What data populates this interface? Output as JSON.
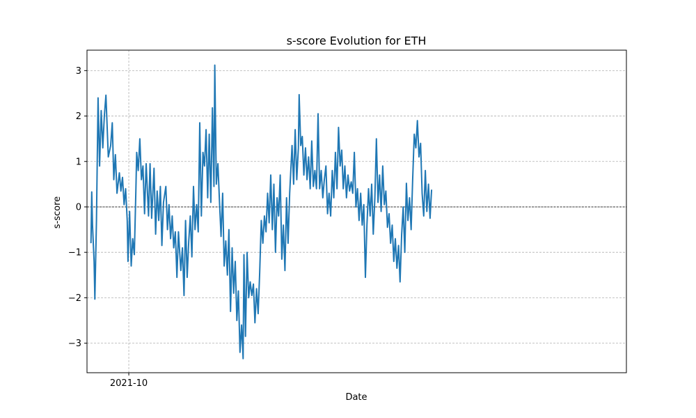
{
  "chart_data": {
    "type": "line",
    "title": "s-score Evolution for ETH",
    "xlabel": "Date",
    "ylabel": "s-score",
    "x_range": [
      "2021-08-09",
      "2023-06-24"
    ],
    "ylim": [
      -3.65,
      3.45
    ],
    "yticks": [
      -3,
      -2,
      -1,
      0,
      1,
      2,
      3
    ],
    "xticks": [
      {
        "date": "2021-10-01",
        "label": "2021-10"
      }
    ],
    "reference_line": {
      "y": 0,
      "style": "dashed",
      "color": "#000000"
    },
    "grid": true,
    "series": [
      {
        "color": "#1f77b4",
        "points": [
          {
            "x": "2021-08-14",
            "y": -0.8
          },
          {
            "x": "2021-08-15",
            "y": 0.33
          },
          {
            "x": "2021-08-16",
            "y": -0.4
          },
          {
            "x": "2021-08-18",
            "y": -1.2
          },
          {
            "x": "2021-08-19",
            "y": -2.03
          },
          {
            "x": "2021-08-21",
            "y": -0.3
          },
          {
            "x": "2021-08-23",
            "y": 2.4
          },
          {
            "x": "2021-08-25",
            "y": 0.9
          },
          {
            "x": "2021-08-27",
            "y": 2.12
          },
          {
            "x": "2021-08-29",
            "y": 1.3
          },
          {
            "x": "2021-08-31",
            "y": 2.0
          },
          {
            "x": "2021-09-02",
            "y": 2.46
          },
          {
            "x": "2021-09-05",
            "y": 1.1
          },
          {
            "x": "2021-09-08",
            "y": 1.35
          },
          {
            "x": "2021-09-10",
            "y": 1.85
          },
          {
            "x": "2021-09-12",
            "y": 0.6
          },
          {
            "x": "2021-09-14",
            "y": 1.15
          },
          {
            "x": "2021-09-16",
            "y": 0.3
          },
          {
            "x": "2021-09-19",
            "y": 0.75
          },
          {
            "x": "2021-09-21",
            "y": 0.35
          },
          {
            "x": "2021-09-23",
            "y": 0.65
          },
          {
            "x": "2021-09-25",
            "y": 0.05
          },
          {
            "x": "2021-09-27",
            "y": 0.4
          },
          {
            "x": "2021-09-29",
            "y": -0.3
          },
          {
            "x": "2021-09-30",
            "y": -1.2
          },
          {
            "x": "2021-10-02",
            "y": -0.1
          },
          {
            "x": "2021-10-04",
            "y": -1.3
          },
          {
            "x": "2021-10-06",
            "y": -0.7
          },
          {
            "x": "2021-10-08",
            "y": -1.05
          },
          {
            "x": "2021-10-10",
            "y": 0.35
          },
          {
            "x": "2021-10-11",
            "y": 1.2
          },
          {
            "x": "2021-10-13",
            "y": 0.8
          },
          {
            "x": "2021-10-15",
            "y": 1.5
          },
          {
            "x": "2021-10-17",
            "y": 0.6
          },
          {
            "x": "2021-10-19",
            "y": 0.9
          },
          {
            "x": "2021-10-21",
            "y": -0.15
          },
          {
            "x": "2021-10-23",
            "y": 0.95
          },
          {
            "x": "2021-10-26",
            "y": -0.2
          },
          {
            "x": "2021-10-28",
            "y": 0.95
          },
          {
            "x": "2021-10-30",
            "y": -0.25
          },
          {
            "x": "2021-11-02",
            "y": 0.85
          },
          {
            "x": "2021-11-04",
            "y": -0.6
          },
          {
            "x": "2021-11-06",
            "y": 0.35
          },
          {
            "x": "2021-11-08",
            "y": -0.3
          },
          {
            "x": "2021-11-10",
            "y": 0.45
          },
          {
            "x": "2021-11-12",
            "y": -0.85
          },
          {
            "x": "2021-11-14",
            "y": 0.1
          },
          {
            "x": "2021-11-17",
            "y": 0.45
          },
          {
            "x": "2021-11-19",
            "y": -0.5
          },
          {
            "x": "2021-11-21",
            "y": 0.05
          },
          {
            "x": "2021-11-23",
            "y": -0.7
          },
          {
            "x": "2021-11-25",
            "y": -0.2
          },
          {
            "x": "2021-11-27",
            "y": -0.9
          },
          {
            "x": "2021-11-29",
            "y": -0.55
          },
          {
            "x": "2021-12-01",
            "y": -1.55
          },
          {
            "x": "2021-12-03",
            "y": -0.55
          },
          {
            "x": "2021-12-06",
            "y": -1.4
          },
          {
            "x": "2021-12-08",
            "y": -0.9
          },
          {
            "x": "2021-12-10",
            "y": -1.95
          },
          {
            "x": "2021-12-12",
            "y": -0.3
          },
          {
            "x": "2021-12-14",
            "y": -1.55
          },
          {
            "x": "2021-12-16",
            "y": -0.75
          },
          {
            "x": "2021-12-18",
            "y": -0.2
          },
          {
            "x": "2021-12-20",
            "y": -1.1
          },
          {
            "x": "2021-12-22",
            "y": 0.45
          },
          {
            "x": "2021-12-24",
            "y": -0.5
          },
          {
            "x": "2021-12-26",
            "y": 0.05
          },
          {
            "x": "2021-12-28",
            "y": -0.55
          },
          {
            "x": "2021-12-30",
            "y": 1.85
          },
          {
            "x": "2022-01-01",
            "y": -0.2
          },
          {
            "x": "2022-01-03",
            "y": 1.2
          },
          {
            "x": "2022-01-05",
            "y": 0.9
          },
          {
            "x": "2022-01-07",
            "y": 1.7
          },
          {
            "x": "2022-01-09",
            "y": 0.2
          },
          {
            "x": "2022-01-11",
            "y": 1.6
          },
          {
            "x": "2022-01-13",
            "y": 0.1
          },
          {
            "x": "2022-01-15",
            "y": 2.18
          },
          {
            "x": "2022-01-17",
            "y": 0.45
          },
          {
            "x": "2022-01-18",
            "y": 3.12
          },
          {
            "x": "2022-01-20",
            "y": 0.5
          },
          {
            "x": "2022-01-22",
            "y": 0.95
          },
          {
            "x": "2022-01-24",
            "y": 0.1
          },
          {
            "x": "2022-01-26",
            "y": -0.65
          },
          {
            "x": "2022-01-28",
            "y": 0.3
          },
          {
            "x": "2022-01-30",
            "y": -1.3
          },
          {
            "x": "2022-02-01",
            "y": -0.75
          },
          {
            "x": "2022-02-03",
            "y": -1.5
          },
          {
            "x": "2022-02-05",
            "y": -0.5
          },
          {
            "x": "2022-02-07",
            "y": -2.3
          },
          {
            "x": "2022-02-09",
            "y": -0.9
          },
          {
            "x": "2022-02-11",
            "y": -1.9
          },
          {
            "x": "2022-02-13",
            "y": -1.2
          },
          {
            "x": "2022-02-15",
            "y": -2.5
          },
          {
            "x": "2022-02-17",
            "y": -1.85
          },
          {
            "x": "2022-02-19",
            "y": -3.2
          },
          {
            "x": "2022-02-21",
            "y": -2.6
          },
          {
            "x": "2022-02-23",
            "y": -3.34
          },
          {
            "x": "2022-02-24",
            "y": -1.05
          },
          {
            "x": "2022-02-26",
            "y": -2.85
          },
          {
            "x": "2022-02-28",
            "y": -1.0
          },
          {
            "x": "2022-03-02",
            "y": -2.0
          },
          {
            "x": "2022-03-04",
            "y": -1.65
          },
          {
            "x": "2022-03-06",
            "y": -1.95
          },
          {
            "x": "2022-03-08",
            "y": -1.7
          },
          {
            "x": "2022-03-10",
            "y": -2.55
          },
          {
            "x": "2022-03-12",
            "y": -1.8
          },
          {
            "x": "2022-03-14",
            "y": -2.35
          },
          {
            "x": "2022-03-16",
            "y": -1.45
          },
          {
            "x": "2022-03-18",
            "y": -0.3
          },
          {
            "x": "2022-03-20",
            "y": -0.8
          },
          {
            "x": "2022-03-22",
            "y": -0.2
          },
          {
            "x": "2022-03-24",
            "y": -0.55
          },
          {
            "x": "2022-03-26",
            "y": 0.3
          },
          {
            "x": "2022-03-28",
            "y": -0.35
          },
          {
            "x": "2022-03-30",
            "y": 0.7
          },
          {
            "x": "2022-04-01",
            "y": -0.5
          },
          {
            "x": "2022-04-03",
            "y": 0.5
          },
          {
            "x": "2022-04-05",
            "y": -1.0
          },
          {
            "x": "2022-04-07",
            "y": 0.2
          },
          {
            "x": "2022-04-09",
            "y": -0.2
          },
          {
            "x": "2022-04-11",
            "y": 0.7
          },
          {
            "x": "2022-04-13",
            "y": -1.15
          },
          {
            "x": "2022-04-15",
            "y": -0.4
          },
          {
            "x": "2022-04-17",
            "y": -1.4
          },
          {
            "x": "2022-04-19",
            "y": 0.2
          },
          {
            "x": "2022-04-21",
            "y": -0.8
          },
          {
            "x": "2022-04-23",
            "y": 0.3
          },
          {
            "x": "2022-04-26",
            "y": 1.35
          },
          {
            "x": "2022-04-28",
            "y": 0.5
          },
          {
            "x": "2022-04-30",
            "y": 1.7
          },
          {
            "x": "2022-05-02",
            "y": 0.6
          },
          {
            "x": "2022-05-04",
            "y": 1.3
          },
          {
            "x": "2022-05-05",
            "y": 2.47
          },
          {
            "x": "2022-05-07",
            "y": 1.35
          },
          {
            "x": "2022-05-09",
            "y": 1.55
          },
          {
            "x": "2022-05-11",
            "y": 0.7
          },
          {
            "x": "2022-05-13",
            "y": 1.3
          },
          {
            "x": "2022-05-15",
            "y": 0.6
          },
          {
            "x": "2022-05-17",
            "y": 1.1
          },
          {
            "x": "2022-05-19",
            "y": 0.4
          },
          {
            "x": "2022-05-21",
            "y": 1.45
          },
          {
            "x": "2022-05-23",
            "y": 0.45
          },
          {
            "x": "2022-05-25",
            "y": 0.8
          },
          {
            "x": "2022-05-27",
            "y": 0.4
          },
          {
            "x": "2022-05-29",
            "y": 2.05
          },
          {
            "x": "2022-05-31",
            "y": 0.4
          },
          {
            "x": "2022-06-02",
            "y": 0.8
          },
          {
            "x": "2022-06-04",
            "y": 0.2
          },
          {
            "x": "2022-06-06",
            "y": 0.6
          },
          {
            "x": "2022-06-08",
            "y": 0.9
          },
          {
            "x": "2022-06-10",
            "y": -0.15
          },
          {
            "x": "2022-06-12",
            "y": 0.3
          },
          {
            "x": "2022-06-14",
            "y": -0.2
          },
          {
            "x": "2022-06-16",
            "y": 0.8
          },
          {
            "x": "2022-06-18",
            "y": 0.2
          },
          {
            "x": "2022-06-20",
            "y": 1.2
          },
          {
            "x": "2022-06-22",
            "y": 0.4
          },
          {
            "x": "2022-06-24",
            "y": 1.75
          },
          {
            "x": "2022-06-26",
            "y": 0.9
          },
          {
            "x": "2022-06-28",
            "y": 1.25
          },
          {
            "x": "2022-06-30",
            "y": 0.4
          },
          {
            "x": "2022-07-02",
            "y": 0.9
          },
          {
            "x": "2022-07-04",
            "y": 0.2
          },
          {
            "x": "2022-07-06",
            "y": 0.7
          },
          {
            "x": "2022-07-08",
            "y": 0.35
          },
          {
            "x": "2022-07-10",
            "y": 0.55
          },
          {
            "x": "2022-07-12",
            "y": 0.3
          },
          {
            "x": "2022-07-14",
            "y": 1.2
          },
          {
            "x": "2022-07-16",
            "y": 0.0
          },
          {
            "x": "2022-07-18",
            "y": 0.4
          },
          {
            "x": "2022-07-20",
            "y": -0.3
          },
          {
            "x": "2022-07-22",
            "y": 0.3
          },
          {
            "x": "2022-07-24",
            "y": -0.4
          },
          {
            "x": "2022-07-26",
            "y": 0.05
          },
          {
            "x": "2022-07-28",
            "y": -1.55
          },
          {
            "x": "2022-07-30",
            "y": -0.4
          },
          {
            "x": "2022-08-01",
            "y": 0.4
          },
          {
            "x": "2022-08-03",
            "y": -0.2
          },
          {
            "x": "2022-08-05",
            "y": 0.5
          },
          {
            "x": "2022-08-07",
            "y": -0.6
          },
          {
            "x": "2022-08-09",
            "y": 0.2
          },
          {
            "x": "2022-08-11",
            "y": 1.5
          },
          {
            "x": "2022-08-13",
            "y": 0.1
          },
          {
            "x": "2022-08-15",
            "y": 0.7
          },
          {
            "x": "2022-08-17",
            "y": -0.1
          },
          {
            "x": "2022-08-19",
            "y": 0.9
          },
          {
            "x": "2022-08-21",
            "y": 0.05
          },
          {
            "x": "2022-08-23",
            "y": 0.35
          },
          {
            "x": "2022-08-25",
            "y": -0.45
          },
          {
            "x": "2022-08-27",
            "y": -0.15
          },
          {
            "x": "2022-08-29",
            "y": -0.8
          },
          {
            "x": "2022-08-31",
            "y": -0.4
          },
          {
            "x": "2022-09-02",
            "y": -1.2
          },
          {
            "x": "2022-09-04",
            "y": -0.7
          },
          {
            "x": "2022-09-06",
            "y": -1.35
          },
          {
            "x": "2022-09-08",
            "y": -0.85
          },
          {
            "x": "2022-09-10",
            "y": -1.65
          },
          {
            "x": "2022-09-12",
            "y": -0.6
          },
          {
            "x": "2022-09-14",
            "y": 0.0
          },
          {
            "x": "2022-09-16",
            "y": -1.0
          },
          {
            "x": "2022-09-18",
            "y": 0.52
          },
          {
            "x": "2022-09-20",
            "y": -0.3
          },
          {
            "x": "2022-09-22",
            "y": 0.2
          },
          {
            "x": "2022-09-24",
            "y": -0.5
          },
          {
            "x": "2022-09-26",
            "y": 0.6
          },
          {
            "x": "2022-09-28",
            "y": 1.6
          },
          {
            "x": "2022-09-30",
            "y": 1.3
          },
          {
            "x": "2022-10-02",
            "y": 1.9
          },
          {
            "x": "2022-10-04",
            "y": 1.1
          },
          {
            "x": "2022-10-06",
            "y": 1.4
          },
          {
            "x": "2022-10-08",
            "y": 0.3
          },
          {
            "x": "2022-10-10",
            "y": -0.2
          },
          {
            "x": "2022-10-12",
            "y": 0.8
          },
          {
            "x": "2022-10-14",
            "y": -0.1
          },
          {
            "x": "2022-10-16",
            "y": 0.5
          },
          {
            "x": "2022-10-18",
            "y": -0.25
          },
          {
            "x": "2022-10-20",
            "y": 0.38
          }
        ]
      }
    ]
  }
}
